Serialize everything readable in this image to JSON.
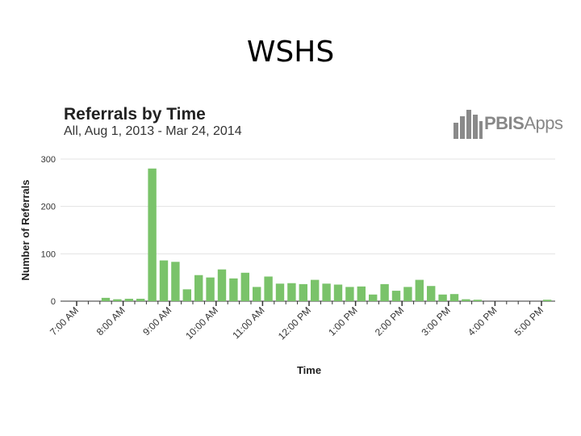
{
  "slide": {
    "title": "WSHS"
  },
  "logo": {
    "text_bold": "PBIS",
    "text_regular": "Apps",
    "icon": "pbis-bar-icon"
  },
  "colors": {
    "bar": "#7ac36a",
    "grid": "#e3e3e3",
    "axis": "#333333"
  },
  "chart_data": {
    "type": "bar",
    "title": "Referrals by Time",
    "subtitle": "All, Aug 1, 2013 - Mar 24, 2014",
    "xlabel": "Time",
    "ylabel": "Number of Referrals",
    "ylim": [
      0,
      300
    ],
    "yticks": [
      0,
      100,
      200,
      300
    ],
    "grid": true,
    "xtick_labels": [
      "7:00 AM",
      "8:00 AM",
      "9:00 AM",
      "10:00 AM",
      "11:00 AM",
      "12:00 PM",
      "1:00 PM",
      "2:00 PM",
      "3:00 PM",
      "4:00 PM",
      "5:00 PM"
    ],
    "slot_minutes": 15,
    "start_label": "7:00 AM",
    "values": [
      0,
      0,
      7,
      4,
      5,
      5,
      280,
      86,
      83,
      25,
      55,
      50,
      67,
      48,
      60,
      30,
      52,
      37,
      38,
      36,
      45,
      37,
      35,
      30,
      31,
      14,
      36,
      22,
      30,
      45,
      32,
      14,
      15,
      4,
      3,
      0,
      0,
      0,
      0,
      0,
      3
    ]
  }
}
